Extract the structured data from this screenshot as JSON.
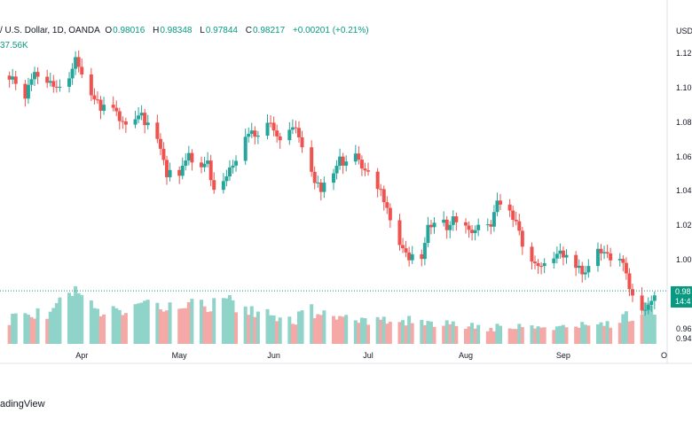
{
  "legend": {
    "symbol": "/ U.S. Dollar, 1D, OANDA",
    "open_label": "O",
    "open": "0.98016",
    "high_label": "H",
    "high": "0.98348",
    "low_label": "L",
    "low": "0.97844",
    "close_label": "C",
    "close": "0.98217",
    "change": "+0.00201 (+0.21%)",
    "volume": "37.56K"
  },
  "price_axis": {
    "currency": "USD",
    "last_price": "0.98",
    "countdown": "14:4"
  },
  "footer": {
    "brand": "adingView"
  },
  "colors": {
    "up": "#26a69a",
    "down": "#ef5350",
    "up_volume": "#8fd3c9",
    "down_volume": "#f4a9a7",
    "last_price": "#089981"
  },
  "chart_data": {
    "type": "candlestick",
    "title": "/ U.S. Dollar, 1D, OANDA",
    "xlabel": "",
    "ylabel": "",
    "ylim": [
      0.94,
      1.13
    ],
    "yticks": [
      1.12,
      1.1,
      1.08,
      1.06,
      1.04,
      1.02,
      1.0,
      0.96,
      0.94
    ],
    "ytick_labels": [
      "1.12",
      "1.10",
      "1.08",
      "1.06",
      "1.04",
      "1.02",
      "1.00",
      "0.96",
      "0.94"
    ],
    "xtick_labels": [
      {
        "label": "Apr",
        "date": "2022-04-01"
      },
      {
        "label": "May",
        "date": "2022-05-02"
      },
      {
        "label": "Jun",
        "date": "2022-06-01"
      },
      {
        "label": "Jul",
        "date": "2022-07-01"
      },
      {
        "label": "Aug",
        "date": "2022-08-01"
      },
      {
        "label": "Sep",
        "date": "2022-09-01"
      },
      {
        "label": "O",
        "date": "2022-10-03"
      }
    ],
    "grid": false,
    "last_price_line": 0.982,
    "close_path": [
      [
        "2022-03-09",
        1.107
      ],
      [
        "2022-03-14",
        1.096
      ],
      [
        "2022-03-17",
        1.11
      ],
      [
        "2022-03-21",
        1.102
      ],
      [
        "2022-03-25",
        1.099
      ],
      [
        "2022-03-28",
        1.105
      ],
      [
        "2022-03-30",
        1.118
      ],
      [
        "2022-04-01",
        1.105
      ],
      [
        "2022-04-05",
        1.092
      ],
      [
        "2022-04-08",
        1.088
      ],
      [
        "2022-04-12",
        1.085
      ],
      [
        "2022-04-14",
        1.082
      ],
      [
        "2022-04-18",
        1.079
      ],
      [
        "2022-04-20",
        1.084
      ],
      [
        "2022-04-22",
        1.078
      ],
      [
        "2022-04-26",
        1.065
      ],
      [
        "2022-04-28",
        1.05
      ],
      [
        "2022-05-03",
        1.052
      ],
      [
        "2022-05-05",
        1.061
      ],
      [
        "2022-05-09",
        1.054
      ],
      [
        "2022-05-11",
        1.055
      ],
      [
        "2022-05-13",
        1.038
      ],
      [
        "2022-05-16",
        1.043
      ],
      [
        "2022-05-18",
        1.052
      ],
      [
        "2022-05-20",
        1.058
      ],
      [
        "2022-05-24",
        1.073
      ],
      [
        "2022-05-27",
        1.074
      ],
      [
        "2022-05-31",
        1.078
      ],
      [
        "2022-06-02",
        1.072
      ],
      [
        "2022-06-06",
        1.074
      ],
      [
        "2022-06-08",
        1.076
      ],
      [
        "2022-06-10",
        1.065
      ],
      [
        "2022-06-14",
        1.045
      ],
      [
        "2022-06-16",
        1.042
      ],
      [
        "2022-06-20",
        1.052
      ],
      [
        "2022-06-22",
        1.058
      ],
      [
        "2022-06-24",
        1.057
      ],
      [
        "2022-06-27",
        1.059
      ],
      [
        "2022-06-29",
        1.055
      ],
      [
        "2022-07-01",
        1.049
      ],
      [
        "2022-07-05",
        1.042
      ],
      [
        "2022-07-07",
        1.03
      ],
      [
        "2022-07-11",
        1.008
      ],
      [
        "2022-07-14",
        1.0
      ],
      [
        "2022-07-18",
        1.002
      ],
      [
        "2022-07-20",
        1.018
      ],
      [
        "2022-07-22",
        1.022
      ],
      [
        "2022-07-26",
        1.02
      ],
      [
        "2022-07-28",
        1.025
      ],
      [
        "2022-08-01",
        1.022
      ],
      [
        "2022-08-03",
        1.017
      ],
      [
        "2022-08-05",
        1.02
      ],
      [
        "2022-08-09",
        1.021
      ],
      [
        "2022-08-11",
        1.032
      ],
      [
        "2022-08-15",
        1.029
      ],
      [
        "2022-08-17",
        1.02
      ],
      [
        "2022-08-19",
        1.01
      ],
      [
        "2022-08-23",
        0.998
      ],
      [
        "2022-08-25",
        0.999
      ],
      [
        "2022-08-29",
        1.0
      ],
      [
        "2022-08-31",
        1.004
      ],
      [
        "2022-09-02",
        1.003
      ],
      [
        "2022-09-06",
        0.996
      ],
      [
        "2022-09-08",
        0.992
      ],
      [
        "2022-09-12",
        1.006
      ],
      [
        "2022-09-14",
        1.004
      ],
      [
        "2022-09-16",
        1.0
      ],
      [
        "2022-09-20",
        1.001
      ],
      [
        "2022-09-22",
        0.984
      ],
      [
        "2022-09-26",
        0.968
      ],
      [
        "2022-09-28",
        0.972
      ],
      [
        "2022-09-30",
        0.982
      ]
    ],
    "volume_range": [
      0,
      60
    ],
    "volume_path": [
      [
        "2022-03-09",
        28,
        "down"
      ],
      [
        "2022-03-16",
        31,
        "up"
      ],
      [
        "2022-03-23",
        36,
        "up"
      ],
      [
        "2022-03-30",
        57,
        "up"
      ],
      [
        "2022-04-06",
        33,
        "down"
      ],
      [
        "2022-04-13",
        35,
        "down"
      ],
      [
        "2022-04-20",
        40,
        "down"
      ],
      [
        "2022-04-27",
        45,
        "down"
      ],
      [
        "2022-05-04",
        52,
        "down"
      ],
      [
        "2022-05-11",
        42,
        "up"
      ],
      [
        "2022-05-18",
        48,
        "down"
      ],
      [
        "2022-05-25",
        35,
        "down"
      ],
      [
        "2022-06-01",
        30,
        "down"
      ],
      [
        "2022-06-08",
        28,
        "down"
      ],
      [
        "2022-06-15",
        40,
        "down"
      ],
      [
        "2022-06-22",
        33,
        "up"
      ],
      [
        "2022-06-29",
        24,
        "down"
      ],
      [
        "2022-07-06",
        30,
        "up"
      ],
      [
        "2022-07-13",
        26,
        "down"
      ],
      [
        "2022-07-20",
        22,
        "up"
      ],
      [
        "2022-07-27",
        23,
        "down"
      ],
      [
        "2022-08-03",
        20,
        "up"
      ],
      [
        "2022-08-10",
        18,
        "up"
      ],
      [
        "2022-08-17",
        20,
        "down"
      ],
      [
        "2022-08-24",
        19,
        "up"
      ],
      [
        "2022-08-31",
        20,
        "up"
      ],
      [
        "2022-09-07",
        22,
        "up"
      ],
      [
        "2022-09-14",
        21,
        "up"
      ],
      [
        "2022-09-21",
        30,
        "down"
      ],
      [
        "2022-09-28",
        40,
        "down"
      ],
      [
        "2022-09-30",
        30,
        "up"
      ]
    ]
  }
}
